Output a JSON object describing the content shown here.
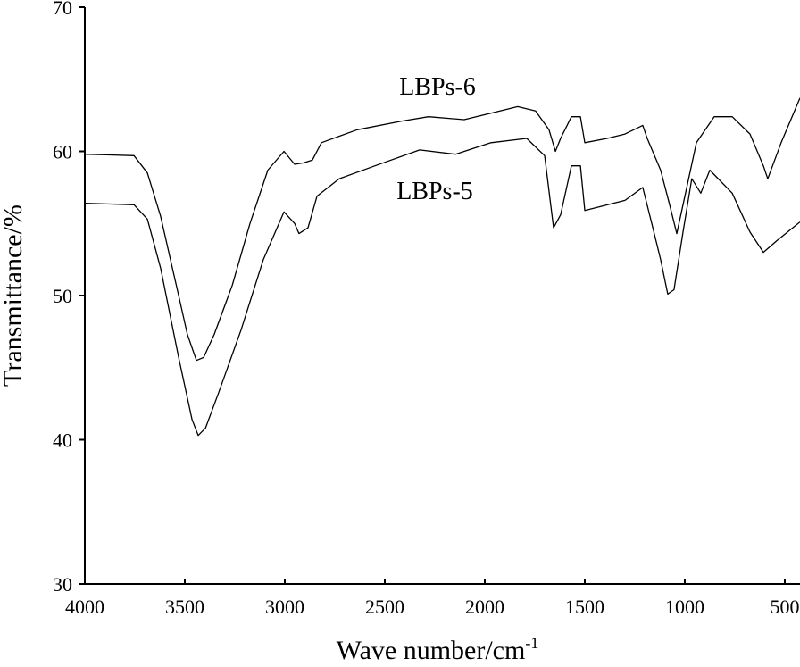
{
  "chart_data": {
    "type": "line",
    "x_label": "Wave number/cm",
    "x_label_superscript": "-1",
    "y_label": "Transmittance/%",
    "xlim": [
      4000,
      424
    ],
    "ylim": [
      30,
      70
    ],
    "xticks": [
      4000,
      3500,
      3000,
      2500,
      2000,
      1500,
      1000,
      500
    ],
    "yticks": [
      30,
      40,
      50,
      60,
      70
    ],
    "series": [
      {
        "name": "LBPs-6",
        "color": "#000000",
        "x": [
          4000,
          3754,
          3687,
          3621,
          3531,
          3487,
          3442,
          3406,
          3353,
          3263,
          3174,
          3085,
          3004,
          2951,
          2906,
          2862,
          2817,
          2638,
          2415,
          2281,
          2103,
          1924,
          1835,
          1746,
          1679,
          1647,
          1621,
          1567,
          1522,
          1500,
          1388,
          1299,
          1210,
          1188,
          1121,
          1076,
          1040,
          1009,
          942,
          853,
          763,
          674,
          607,
          585,
          518,
          424
        ],
        "values": [
          59.8,
          59.7,
          58.5,
          55.5,
          50,
          47.3,
          45.5,
          45.7,
          47.3,
          50.7,
          55,
          58.7,
          60,
          59.1,
          59.2,
          59.4,
          60.6,
          61.5,
          62.1,
          62.4,
          62.2,
          62.8,
          63.1,
          62.8,
          61.5,
          60,
          60.9,
          62.4,
          62.4,
          60.6,
          60.9,
          61.2,
          61.8,
          60.9,
          58.7,
          56.3,
          54.3,
          56.3,
          60.6,
          62.4,
          62.4,
          61.2,
          59,
          58.1,
          60.6,
          63.7
        ]
      },
      {
        "name": "LBPs-5",
        "color": "#000000",
        "x": [
          4000,
          3754,
          3687,
          3621,
          3531,
          3464,
          3433,
          3397,
          3330,
          3219,
          3107,
          3004,
          2951,
          2929,
          2884,
          2839,
          2728,
          2549,
          2326,
          2147,
          1969,
          1790,
          1701,
          1656,
          1621,
          1567,
          1522,
          1500,
          1299,
          1210,
          1165,
          1121,
          1085,
          1054,
          1009,
          965,
          920,
          875,
          763,
          674,
          607,
          540,
          424
        ],
        "values": [
          56.4,
          56.3,
          55.3,
          51.9,
          45.7,
          41.4,
          40.3,
          40.8,
          43.3,
          47.6,
          52.5,
          55.8,
          55,
          54.3,
          54.7,
          56.9,
          58.1,
          59,
          60.1,
          59.8,
          60.6,
          60.9,
          59.7,
          54.7,
          55.6,
          59,
          59,
          55.9,
          56.6,
          57.5,
          55,
          52.5,
          50.1,
          50.4,
          54.4,
          58.1,
          57.1,
          58.7,
          57.1,
          54.4,
          53,
          53.8,
          55.1
        ]
      }
    ]
  }
}
